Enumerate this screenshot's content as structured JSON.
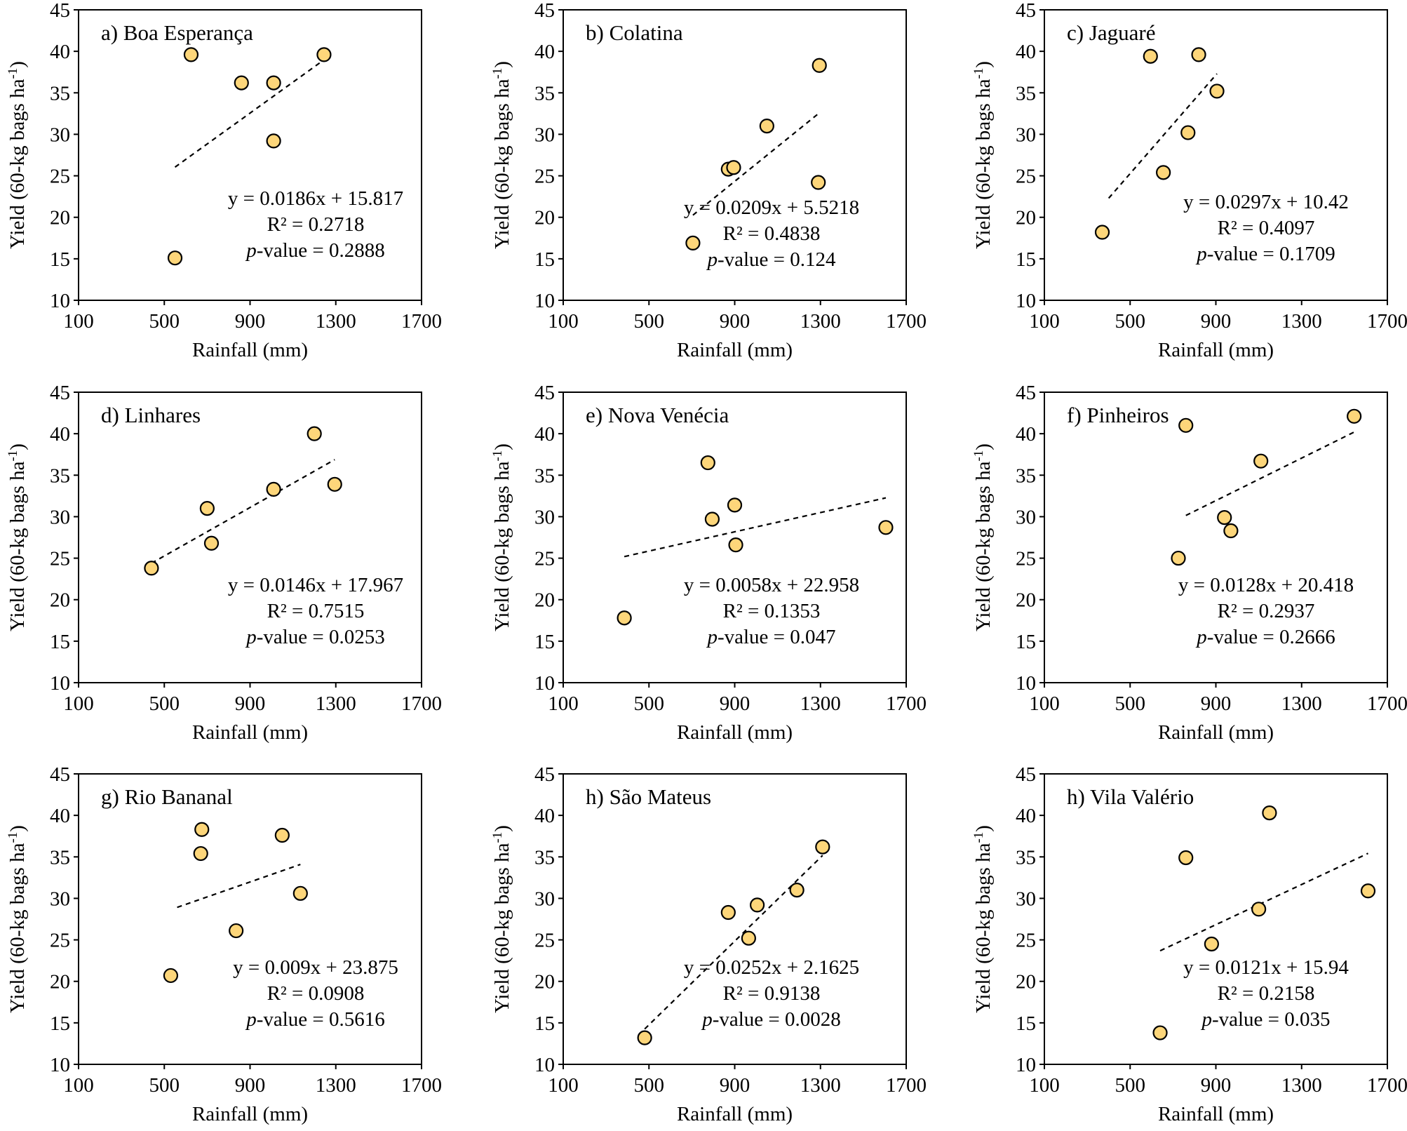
{
  "figure": {
    "xlabel": "Rainfall  (mm)",
    "ylabel_main": "Yield  (60-kg bags ha",
    "ylabel_sup": "-1",
    "ylabel_close": ")",
    "x_ticks": [
      "100",
      "500",
      "900",
      "1300",
      "1700"
    ],
    "y_ticks": [
      "10",
      "15",
      "20",
      "25",
      "30",
      "35",
      "40",
      "45"
    ],
    "point_color": "#fdd67a"
  },
  "chart_data": [
    {
      "type": "scatter",
      "title": "a) Boa Esperança",
      "xlabel": "Rainfall  (mm)",
      "ylabel": "Yield  (60-kg bags ha-1)",
      "xlim": [
        100,
        1700
      ],
      "ylim": [
        10,
        45
      ],
      "x": [
        550,
        625,
        860,
        1010,
        1010,
        1245
      ],
      "y": [
        15.1,
        39.6,
        36.2,
        36.2,
        29.2,
        39.6
      ],
      "trendline": {
        "slope": 0.0186,
        "intercept": 15.817,
        "x_range": [
          550,
          1245
        ]
      },
      "equation": "y = 0.0186x + 15.817",
      "r2": "R² = 0.2718",
      "p_label": "p",
      "p_value": "-value = 0.2888"
    },
    {
      "type": "scatter",
      "title": "b) Colatina",
      "xlabel": "Rainfall  (mm)",
      "ylabel": "Yield  (60-kg bags ha-1)",
      "xlim": [
        100,
        1700
      ],
      "ylim": [
        10,
        45
      ],
      "x": [
        705,
        870,
        895,
        1050,
        1290,
        1295
      ],
      "y": [
        16.9,
        25.8,
        26.0,
        31.0,
        24.2,
        38.3
      ],
      "trendline": {
        "slope": 0.0209,
        "intercept": 5.5218,
        "x_range": [
          705,
          1295
        ]
      },
      "equation": "y = 0.0209x + 5.5218",
      "r2": "R² = 0.4838",
      "p_label": "p",
      "p_value": "-value = 0.124"
    },
    {
      "type": "scatter",
      "title": "c) Jaguaré",
      "xlabel": "Rainfall  (mm)",
      "ylabel": "Yield  (60-kg bags ha-1)",
      "xlim": [
        100,
        1700
      ],
      "ylim": [
        10,
        45
      ],
      "x": [
        370,
        595,
        655,
        770,
        820,
        905
      ],
      "y": [
        18.2,
        39.4,
        25.4,
        30.2,
        39.6,
        35.2
      ],
      "trendline": {
        "slope": 0.0297,
        "intercept": 10.42,
        "x_range": [
          400,
          905
        ]
      },
      "equation": "y = 0.0297x + 10.42",
      "r2": "R² = 0.4097",
      "p_label": "p",
      "p_value": "-value = 0.1709"
    },
    {
      "type": "scatter",
      "title": "d) Linhares",
      "xlabel": "Rainfall  (mm)",
      "ylabel": "Yield  (60-kg bags ha-1)",
      "xlim": [
        100,
        1700
      ],
      "ylim": [
        10,
        45
      ],
      "x": [
        440,
        700,
        720,
        1010,
        1200,
        1295
      ],
      "y": [
        23.8,
        31.0,
        26.8,
        33.3,
        40.0,
        33.9
      ],
      "trendline": {
        "slope": 0.0146,
        "intercept": 17.967,
        "x_range": [
          440,
          1295
        ]
      },
      "equation": "y = 0.0146x + 17.967",
      "r2": "R² = 0.7515",
      "p_label": "p",
      "p_value": "-value = 0.0253"
    },
    {
      "type": "scatter",
      "title": "e) Nova Venécia",
      "xlabel": "Rainfall  (mm)",
      "ylabel": "Yield  (60-kg bags ha-1)",
      "xlim": [
        100,
        1700
      ],
      "ylim": [
        10,
        45
      ],
      "x": [
        385,
        775,
        795,
        900,
        905,
        1605
      ],
      "y": [
        17.8,
        36.5,
        29.7,
        31.4,
        26.6,
        28.7
      ],
      "trendline": {
        "slope": 0.0058,
        "intercept": 22.958,
        "x_range": [
          385,
          1605
        ]
      },
      "equation": "y = 0.0058x + 22.958",
      "r2": "R² = 0.1353",
      "p_label": "p",
      "p_value": "-value = 0.047"
    },
    {
      "type": "scatter",
      "title": "f) Pinheiros",
      "xlabel": "Rainfall  (mm)",
      "ylabel": "Yield  (60-kg bags ha-1)",
      "xlim": [
        100,
        1700
      ],
      "ylim": [
        10,
        45
      ],
      "x": [
        725,
        760,
        940,
        970,
        1110,
        1545
      ],
      "y": [
        25.0,
        41.0,
        29.9,
        28.3,
        36.7,
        42.1
      ],
      "trendline": {
        "slope": 0.0128,
        "intercept": 20.418,
        "x_range": [
          760,
          1545
        ]
      },
      "equation": "y = 0.0128x + 20.418",
      "r2": "R² = 0.2937",
      "p_label": "p",
      "p_value": "-value = 0.2666"
    },
    {
      "type": "scatter",
      "title": "g) Rio Bananal",
      "xlabel": "Rainfall  (mm)",
      "ylabel": "Yield  (60-kg bags ha-1)",
      "xlim": [
        100,
        1700
      ],
      "ylim": [
        10,
        45
      ],
      "x": [
        530,
        670,
        675,
        835,
        1050,
        1135
      ],
      "y": [
        20.7,
        35.4,
        38.3,
        26.1,
        37.6,
        30.6
      ],
      "trendline": {
        "slope": 0.009,
        "intercept": 23.875,
        "x_range": [
          560,
          1135
        ]
      },
      "equation": "y = 0.009x + 23.875",
      "r2": "R² = 0.0908",
      "p_label": "p",
      "p_value": "-value = 0.5616"
    },
    {
      "type": "scatter",
      "title": "h) São Mateus",
      "xlabel": "Rainfall  (mm)",
      "ylabel": "Yield  (60-kg bags ha-1)",
      "xlim": [
        100,
        1700
      ],
      "ylim": [
        10,
        45
      ],
      "x": [
        480,
        870,
        965,
        1005,
        1190,
        1310
      ],
      "y": [
        13.2,
        28.3,
        25.2,
        29.2,
        31.0,
        36.2
      ],
      "trendline": {
        "slope": 0.0252,
        "intercept": 2.1625,
        "x_range": [
          480,
          1310
        ]
      },
      "equation": "y = 0.0252x + 2.1625",
      "r2": "R² = 0.9138",
      "p_label": "p",
      "p_value": "-value = 0.0028"
    },
    {
      "type": "scatter",
      "title": "h) Vila  Valério",
      "xlabel": "Rainfall  (mm)",
      "ylabel": "Yield  (60-kg bags ha-1)",
      "xlim": [
        100,
        1700
      ],
      "ylim": [
        10,
        45
      ],
      "x": [
        640,
        760,
        880,
        1100,
        1150,
        1610
      ],
      "y": [
        13.8,
        34.9,
        24.5,
        28.7,
        40.3,
        30.9
      ],
      "trendline": {
        "slope": 0.0121,
        "intercept": 15.94,
        "x_range": [
          640,
          1610
        ]
      },
      "equation": "y = 0.0121x + 15.94",
      "r2": "R² = 0.2158",
      "p_label": "p",
      "p_value": "-value = 0.035"
    }
  ]
}
